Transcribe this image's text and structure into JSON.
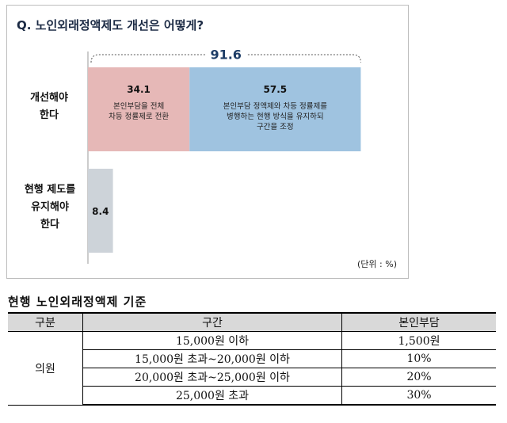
{
  "chart_data": {
    "type": "bar",
    "title": "Q. 노인외래정액제도 개선은 어떻게?",
    "categories": [
      "개선해야\n한다",
      "현행 제도를\n유지해야\n한다"
    ],
    "series": [
      {
        "value": 34.1,
        "desc": "본인부담을 전체\n차등 정률제로 전환",
        "color": "#e6b8b7"
      },
      {
        "value": 57.5,
        "desc": "본인부담 정액제와 차등 정률제를\n병행하는 현행 방식을 유지하되\n구간을 조정",
        "color": "#9fc3e0"
      },
      {
        "value": 8.4,
        "desc": "",
        "color": "#cdd3d9"
      }
    ],
    "total_label": "91.6",
    "unit": "(단위 : %)",
    "xlim": [
      0,
      100
    ]
  },
  "table": {
    "title": "현행 노인외래정액제 기준",
    "headers": [
      "구분",
      "구간",
      "본인부담"
    ],
    "category": "의원",
    "rows": [
      {
        "range": "15,000원 이하",
        "charge": "1,500원"
      },
      {
        "range": "15,000원 초과~20,000원 이하",
        "charge": "10%"
      },
      {
        "range": "20,000원 초과~25,000원 이하",
        "charge": "20%"
      },
      {
        "range": "25,000원 초과",
        "charge": "30%"
      }
    ]
  }
}
